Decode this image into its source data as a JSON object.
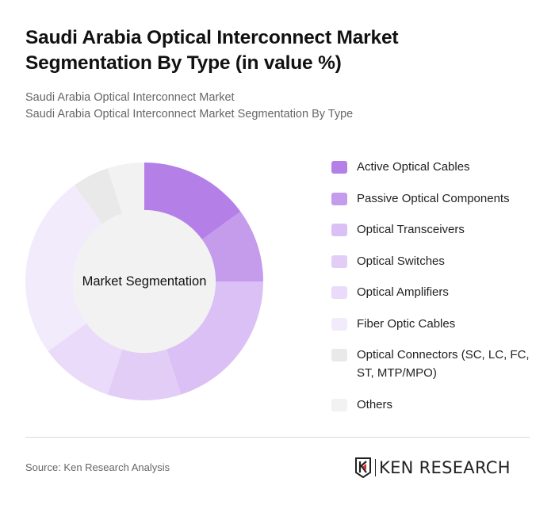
{
  "header": {
    "title": "Saudi Arabia Optical Interconnect Market Segmentation By Type (in value %)",
    "subtitle_line1": "Saudi Arabia Optical Interconnect Market",
    "subtitle_line2": "Saudi Arabia Optical Interconnect Market Segmentation By Type"
  },
  "chart": {
    "center_label": "Market Segmentation"
  },
  "legend": {
    "items": [
      {
        "label": "Active Optical Cables",
        "color": "#b57fe8"
      },
      {
        "label": "Passive Optical Components",
        "color": "#c59bec"
      },
      {
        "label": "Optical Transceivers",
        "color": "#dbc0f5"
      },
      {
        "label": "Optical Switches",
        "color": "#e2cdf7"
      },
      {
        "label": "Optical Amplifiers",
        "color": "#e9dbf9"
      },
      {
        "label": "Fiber Optic Cables",
        "color": "#f2ebfb"
      },
      {
        "label": "Optical Connectors (SC, LC, FC, ST, MTP/MPO)",
        "color": "#e9e9e9"
      },
      {
        "label": "Others",
        "color": "#f2f2f2"
      }
    ]
  },
  "footer": {
    "source": "Source: Ken Research Analysis",
    "logo_text": "KEN RESEARCH"
  },
  "chart_data": {
    "type": "pie",
    "title": "Saudi Arabia Optical Interconnect Market Segmentation By Type (in value %)",
    "subtitle": "Saudi Arabia Optical Interconnect Market Segmentation By Type",
    "donut": true,
    "center_label": "Market Segmentation",
    "categories": [
      "Active Optical Cables",
      "Passive Optical Components",
      "Optical Transceivers",
      "Optical Switches",
      "Optical Amplifiers",
      "Fiber Optic Cables",
      "Optical Connectors (SC, LC, FC, ST, MTP/MPO)",
      "Others"
    ],
    "values": [
      15,
      10,
      20,
      10,
      10,
      25,
      5,
      5
    ],
    "colors": [
      "#b57fe8",
      "#c59bec",
      "#dbc0f5",
      "#e2cdf7",
      "#e9dbf9",
      "#f2ebfb",
      "#e9e9e9",
      "#f2f2f2"
    ],
    "unit": "%",
    "legend_position": "right",
    "start_angle": "12 o'clock, clockwise"
  }
}
